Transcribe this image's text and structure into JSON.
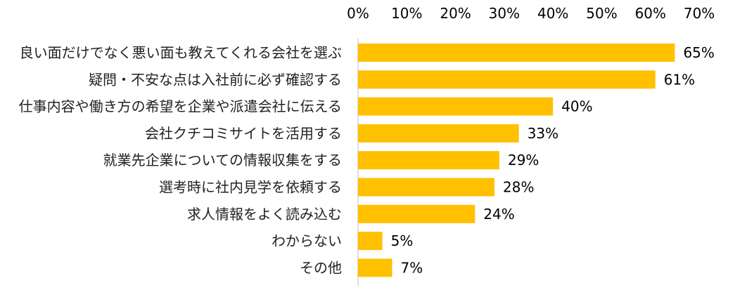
{
  "chart_data": {
    "type": "bar",
    "orientation": "horizontal",
    "categories": [
      "良い面だけでなく悪い面も教えてくれる会社を選ぶ",
      "疑問・不安な点は入社前に必ず確認する",
      "仕事内容や働き方の希望を企業や派遣会社に伝える",
      "会社クチコミサイトを活用する",
      "就業先企業についての情報収集をする",
      "選考時に社内見学を依頼する",
      "求人情報をよく読み込む",
      "わからない",
      "その他"
    ],
    "values": [
      65,
      61,
      40,
      33,
      29,
      28,
      24,
      5,
      7
    ],
    "value_labels": [
      "65%",
      "61%",
      "40%",
      "33%",
      "29%",
      "28%",
      "24%",
      "5%",
      "7%"
    ],
    "xlim": [
      0,
      70
    ],
    "ticks": [
      0,
      10,
      20,
      30,
      40,
      50,
      60,
      70
    ],
    "tick_labels": [
      "0%",
      "10%",
      "20%",
      "30%",
      "40%",
      "50%",
      "60%",
      "70%"
    ],
    "axis_position": "top",
    "grid": false,
    "legend": "none",
    "bar_color": "#FFC000",
    "axis_color": "#BFBFBF"
  }
}
